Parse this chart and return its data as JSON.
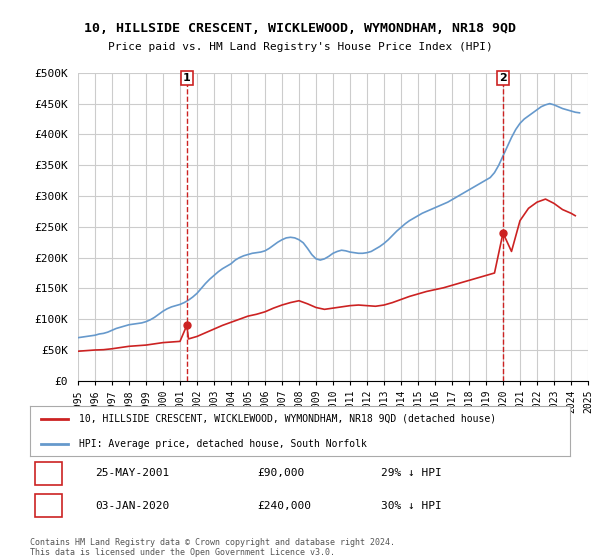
{
  "title": "10, HILLSIDE CRESCENT, WICKLEWOOD, WYMONDHAM, NR18 9QD",
  "subtitle": "Price paid vs. HM Land Registry's House Price Index (HPI)",
  "ylabel": "",
  "xlabel": "",
  "ylim": [
    0,
    500000
  ],
  "yticks": [
    0,
    50000,
    100000,
    150000,
    200000,
    250000,
    300000,
    350000,
    400000,
    450000,
    500000
  ],
  "ytick_labels": [
    "£0",
    "£50K",
    "£100K",
    "£150K",
    "£200K",
    "£250K",
    "£300K",
    "£350K",
    "£400K",
    "£450K",
    "£500K"
  ],
  "sale1_date": 2001.4,
  "sale1_label": "1",
  "sale1_price": 90000,
  "sale1_text": "25-MAY-2001",
  "sale1_pct": "29% ↓ HPI",
  "sale2_date": 2020.0,
  "sale2_label": "2",
  "sale2_price": 240000,
  "sale2_text": "03-JAN-2020",
  "sale2_pct": "30% ↓ HPI",
  "hpi_color": "#6699cc",
  "price_color": "#cc2222",
  "vline_color": "#cc2222",
  "background_color": "#ffffff",
  "grid_color": "#cccccc",
  "legend_label_price": "10, HILLSIDE CRESCENT, WICKLEWOOD, WYMONDHAM, NR18 9QD (detached house)",
  "legend_label_hpi": "HPI: Average price, detached house, South Norfolk",
  "footer": "Contains HM Land Registry data © Crown copyright and database right 2024.\nThis data is licensed under the Open Government Licence v3.0.",
  "hpi_years": [
    1995,
    1995.25,
    1995.5,
    1995.75,
    1996,
    1996.25,
    1996.5,
    1996.75,
    1997,
    1997.25,
    1997.5,
    1997.75,
    1998,
    1998.25,
    1998.5,
    1998.75,
    1999,
    1999.25,
    1999.5,
    1999.75,
    2000,
    2000.25,
    2000.5,
    2000.75,
    2001,
    2001.25,
    2001.5,
    2001.75,
    2002,
    2002.25,
    2002.5,
    2002.75,
    2003,
    2003.25,
    2003.5,
    2003.75,
    2004,
    2004.25,
    2004.5,
    2004.75,
    2005,
    2005.25,
    2005.5,
    2005.75,
    2006,
    2006.25,
    2006.5,
    2006.75,
    2007,
    2007.25,
    2007.5,
    2007.75,
    2008,
    2008.25,
    2008.5,
    2008.75,
    2009,
    2009.25,
    2009.5,
    2009.75,
    2010,
    2010.25,
    2010.5,
    2010.75,
    2011,
    2011.25,
    2011.5,
    2011.75,
    2012,
    2012.25,
    2012.5,
    2012.75,
    2013,
    2013.25,
    2013.5,
    2013.75,
    2014,
    2014.25,
    2014.5,
    2014.75,
    2015,
    2015.25,
    2015.5,
    2015.75,
    2016,
    2016.25,
    2016.5,
    2016.75,
    2017,
    2017.25,
    2017.5,
    2017.75,
    2018,
    2018.25,
    2018.5,
    2018.75,
    2019,
    2019.25,
    2019.5,
    2019.75,
    2020,
    2020.25,
    2020.5,
    2020.75,
    2021,
    2021.25,
    2021.5,
    2021.75,
    2022,
    2022.25,
    2022.5,
    2022.75,
    2023,
    2023.25,
    2023.5,
    2023.75,
    2024,
    2024.25,
    2024.5
  ],
  "hpi_values": [
    70000,
    71000,
    72000,
    73000,
    74000,
    76000,
    77000,
    79000,
    82000,
    85000,
    87000,
    89000,
    91000,
    92000,
    93000,
    94000,
    96000,
    99000,
    103000,
    108000,
    113000,
    117000,
    120000,
    122000,
    124000,
    127000,
    131000,
    136000,
    142000,
    150000,
    158000,
    165000,
    171000,
    177000,
    182000,
    186000,
    190000,
    196000,
    200000,
    203000,
    205000,
    207000,
    208000,
    209000,
    211000,
    215000,
    220000,
    225000,
    229000,
    232000,
    233000,
    232000,
    229000,
    224000,
    215000,
    205000,
    198000,
    196000,
    198000,
    202000,
    207000,
    210000,
    212000,
    211000,
    209000,
    208000,
    207000,
    207000,
    208000,
    210000,
    214000,
    218000,
    223000,
    229000,
    236000,
    243000,
    249000,
    255000,
    260000,
    264000,
    268000,
    272000,
    275000,
    278000,
    281000,
    284000,
    287000,
    290000,
    294000,
    298000,
    302000,
    306000,
    310000,
    314000,
    318000,
    322000,
    326000,
    330000,
    338000,
    350000,
    365000,
    380000,
    395000,
    408000,
    418000,
    425000,
    430000,
    435000,
    440000,
    445000,
    448000,
    450000,
    448000,
    445000,
    442000,
    440000,
    438000,
    436000,
    435000
  ],
  "price_years": [
    1995,
    1995.5,
    1996,
    1996.5,
    1997,
    1997.5,
    1998,
    1998.5,
    1999,
    1999.5,
    2000,
    2000.5,
    2001,
    2001.4,
    2001.5,
    2002,
    2002.5,
    2003,
    2003.5,
    2004,
    2004.5,
    2005,
    2005.5,
    2006,
    2006.5,
    2007,
    2007.5,
    2008,
    2008.5,
    2009,
    2009.5,
    2010,
    2010.5,
    2011,
    2011.5,
    2012,
    2012.5,
    2013,
    2013.5,
    2014,
    2014.5,
    2015,
    2015.5,
    2016,
    2016.5,
    2017,
    2017.5,
    2018,
    2018.5,
    2019,
    2019.5,
    2020.0,
    2020.5,
    2021,
    2021.5,
    2022,
    2022.5,
    2023,
    2023.5,
    2024,
    2024.25
  ],
  "price_values": [
    48000,
    49000,
    50000,
    50500,
    52000,
    54000,
    56000,
    57000,
    58000,
    60000,
    62000,
    63000,
    64000,
    90000,
    68000,
    72000,
    78000,
    84000,
    90000,
    95000,
    100000,
    105000,
    108000,
    112000,
    118000,
    123000,
    127000,
    130000,
    125000,
    119000,
    116000,
    118000,
    120000,
    122000,
    123000,
    122000,
    121000,
    123000,
    127000,
    132000,
    137000,
    141000,
    145000,
    148000,
    151000,
    155000,
    159000,
    163000,
    167000,
    171000,
    175000,
    240000,
    210000,
    260000,
    280000,
    290000,
    295000,
    288000,
    278000,
    272000,
    268000
  ],
  "xtick_years": [
    1995,
    1996,
    1997,
    1998,
    1999,
    2000,
    2001,
    2002,
    2003,
    2004,
    2005,
    2006,
    2007,
    2008,
    2009,
    2010,
    2011,
    2012,
    2013,
    2014,
    2015,
    2016,
    2017,
    2018,
    2019,
    2020,
    2021,
    2022,
    2023,
    2024,
    2025
  ]
}
